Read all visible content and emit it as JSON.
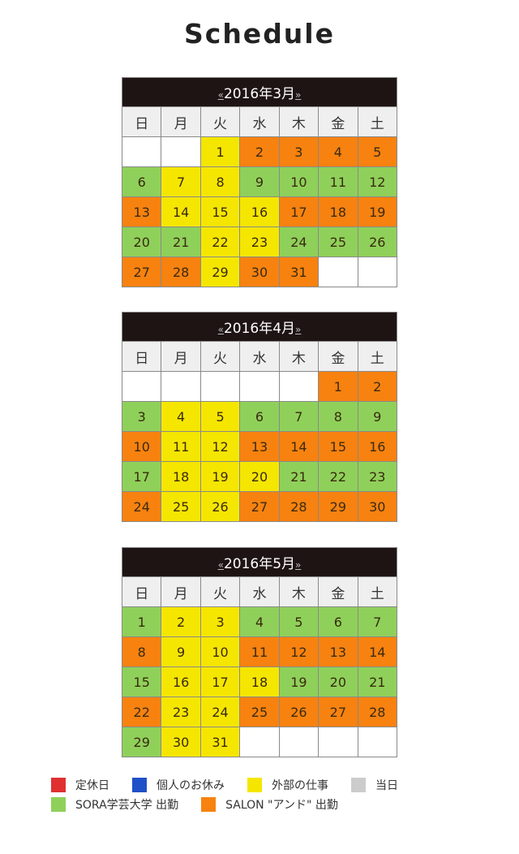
{
  "title": "Schedule",
  "nav": {
    "prev": "«",
    "next": "»"
  },
  "weekdays": [
    "日",
    "月",
    "火",
    "水",
    "木",
    "金",
    "土"
  ],
  "colors": {
    "R": "#e03030",
    "B": "#2050c8",
    "Y": "#f5e600",
    "T": "#cccccc",
    "G": "#8fd05a",
    "O": "#f7820f",
    "": "#ffffff"
  },
  "months": [
    {
      "label": "2016年3月",
      "weeks": [
        [
          [
            "",
            ""
          ],
          [
            "",
            ""
          ],
          [
            "1",
            "Y"
          ],
          [
            "2",
            "O"
          ],
          [
            "3",
            "O"
          ],
          [
            "4",
            "O"
          ],
          [
            "5",
            "O"
          ]
        ],
        [
          [
            "6",
            "G"
          ],
          [
            "7",
            "Y"
          ],
          [
            "8",
            "Y"
          ],
          [
            "9",
            "G"
          ],
          [
            "10",
            "G"
          ],
          [
            "11",
            "G"
          ],
          [
            "12",
            "G"
          ]
        ],
        [
          [
            "13",
            "O"
          ],
          [
            "14",
            "Y"
          ],
          [
            "15",
            "Y"
          ],
          [
            "16",
            "Y"
          ],
          [
            "17",
            "O"
          ],
          [
            "18",
            "O"
          ],
          [
            "19",
            "O"
          ]
        ],
        [
          [
            "20",
            "G"
          ],
          [
            "21",
            "G"
          ],
          [
            "22",
            "Y"
          ],
          [
            "23",
            "Y"
          ],
          [
            "24",
            "G"
          ],
          [
            "25",
            "G"
          ],
          [
            "26",
            "G"
          ]
        ],
        [
          [
            "27",
            "O"
          ],
          [
            "28",
            "O"
          ],
          [
            "29",
            "Y"
          ],
          [
            "30",
            "O"
          ],
          [
            "31",
            "O"
          ],
          [
            "",
            ""
          ],
          [
            "",
            ""
          ]
        ]
      ]
    },
    {
      "label": "2016年4月",
      "weeks": [
        [
          [
            "",
            ""
          ],
          [
            "",
            ""
          ],
          [
            "",
            ""
          ],
          [
            "",
            ""
          ],
          [
            "",
            ""
          ],
          [
            "1",
            "O"
          ],
          [
            "2",
            "O"
          ]
        ],
        [
          [
            "3",
            "G"
          ],
          [
            "4",
            "Y"
          ],
          [
            "5",
            "Y"
          ],
          [
            "6",
            "G"
          ],
          [
            "7",
            "G"
          ],
          [
            "8",
            "G"
          ],
          [
            "9",
            "G"
          ]
        ],
        [
          [
            "10",
            "O"
          ],
          [
            "11",
            "Y"
          ],
          [
            "12",
            "Y"
          ],
          [
            "13",
            "O"
          ],
          [
            "14",
            "O"
          ],
          [
            "15",
            "O"
          ],
          [
            "16",
            "O"
          ]
        ],
        [
          [
            "17",
            "G"
          ],
          [
            "18",
            "Y"
          ],
          [
            "19",
            "Y"
          ],
          [
            "20",
            "Y"
          ],
          [
            "21",
            "G"
          ],
          [
            "22",
            "G"
          ],
          [
            "23",
            "G"
          ]
        ],
        [
          [
            "24",
            "O"
          ],
          [
            "25",
            "Y"
          ],
          [
            "26",
            "Y"
          ],
          [
            "27",
            "O"
          ],
          [
            "28",
            "O"
          ],
          [
            "29",
            "O"
          ],
          [
            "30",
            "O"
          ]
        ]
      ]
    },
    {
      "label": "2016年5月",
      "weeks": [
        [
          [
            "1",
            "G"
          ],
          [
            "2",
            "Y"
          ],
          [
            "3",
            "Y"
          ],
          [
            "4",
            "G"
          ],
          [
            "5",
            "G"
          ],
          [
            "6",
            "G"
          ],
          [
            "7",
            "G"
          ]
        ],
        [
          [
            "8",
            "O"
          ],
          [
            "9",
            "Y"
          ],
          [
            "10",
            "Y"
          ],
          [
            "11",
            "O"
          ],
          [
            "12",
            "O"
          ],
          [
            "13",
            "O"
          ],
          [
            "14",
            "O"
          ]
        ],
        [
          [
            "15",
            "G"
          ],
          [
            "16",
            "Y"
          ],
          [
            "17",
            "Y"
          ],
          [
            "18",
            "Y"
          ],
          [
            "19",
            "G"
          ],
          [
            "20",
            "G"
          ],
          [
            "21",
            "G"
          ]
        ],
        [
          [
            "22",
            "O"
          ],
          [
            "23",
            "Y"
          ],
          [
            "24",
            "Y"
          ],
          [
            "25",
            "O"
          ],
          [
            "26",
            "O"
          ],
          [
            "27",
            "O"
          ],
          [
            "28",
            "O"
          ]
        ],
        [
          [
            "29",
            "G"
          ],
          [
            "30",
            "Y"
          ],
          [
            "31",
            "Y"
          ],
          [
            "",
            ""
          ],
          [
            "",
            ""
          ],
          [
            "",
            ""
          ],
          [
            "",
            ""
          ]
        ]
      ]
    }
  ],
  "legend": [
    [
      {
        "label": "定休日",
        "color": "R"
      },
      {
        "label": "個人のお休み",
        "color": "B"
      },
      {
        "label": "外部の仕事",
        "color": "Y"
      },
      {
        "label": "当日",
        "color": "T"
      }
    ],
    [
      {
        "label": "SORA学芸大学 出勤",
        "color": "G"
      },
      {
        "label": "SALON \"アンド\" 出勤",
        "color": "O"
      }
    ]
  ]
}
